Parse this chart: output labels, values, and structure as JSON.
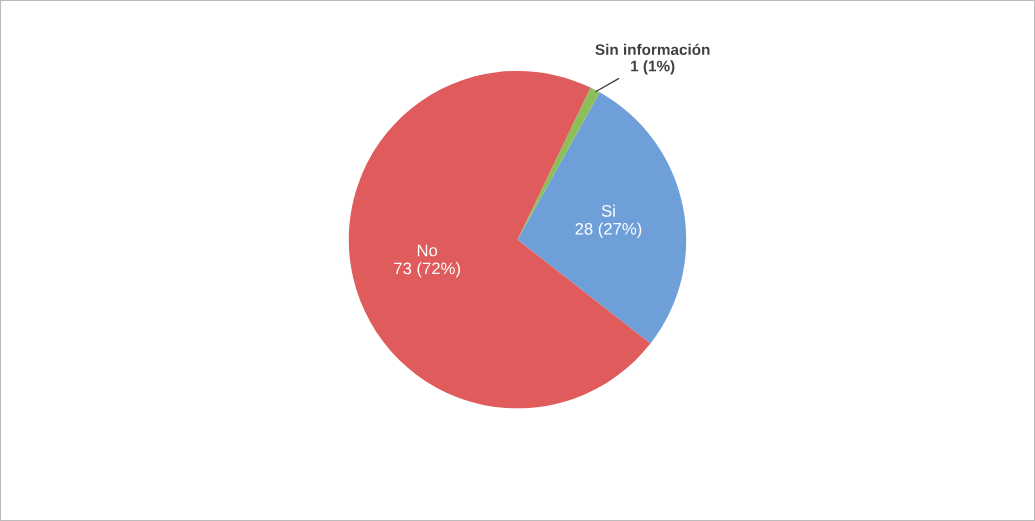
{
  "chart_data": {
    "type": "pie",
    "categories": [
      "Si",
      "Sin información",
      "No"
    ],
    "values": [
      28,
      1,
      73
    ],
    "value_labels": [
      "28 (27%)",
      "1 (1%)",
      "73 (72%)"
    ],
    "colors": [
      "#6f9fd8",
      "#8cbf5a",
      "#e05c5c"
    ],
    "legend": false
  }
}
